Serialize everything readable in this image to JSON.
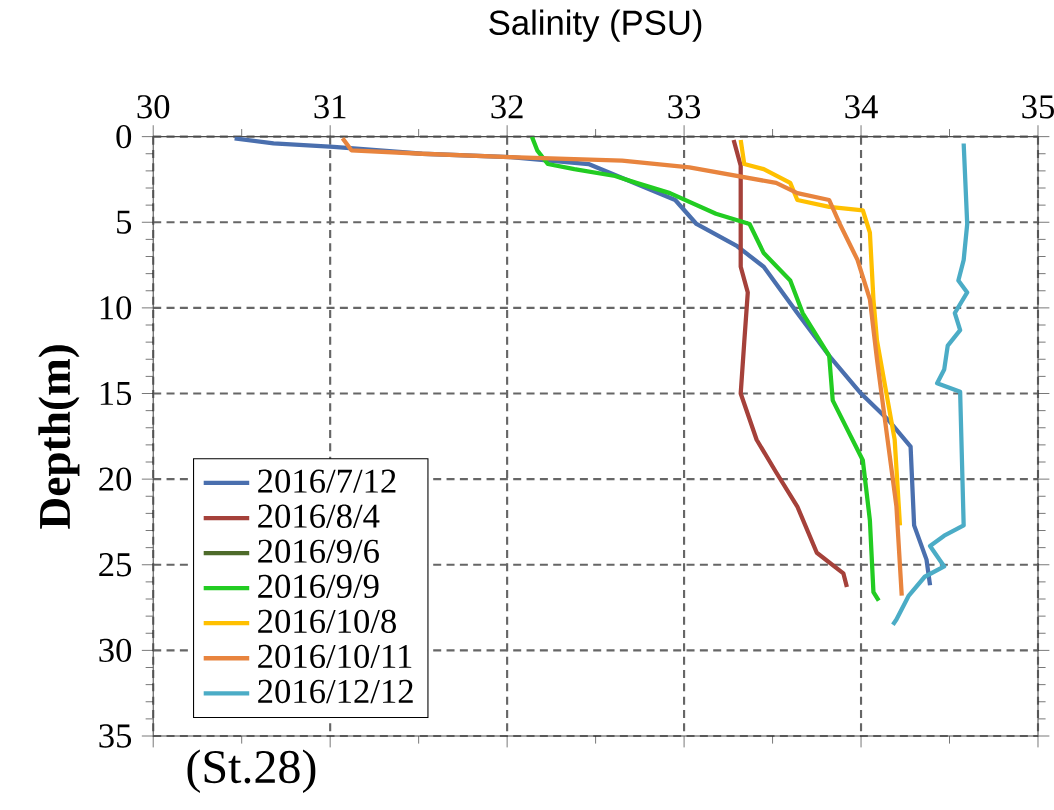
{
  "chart_data": {
    "type": "line",
    "title": "Salinity (PSU)",
    "ylabel": "Depth(m)",
    "xlim": [
      30,
      35
    ],
    "xticks": [
      30,
      31,
      32,
      33,
      34,
      35
    ],
    "ylim": [
      35,
      0
    ],
    "yticks": [
      0,
      5,
      10,
      15,
      20,
      25,
      30,
      35
    ],
    "grid": true,
    "legend": "bottom left",
    "marker": "none",
    "line_style": "solid",
    "annotations": [
      "(St.28)"
    ],
    "series": [
      {
        "name": "2016/7/12",
        "color": "#4a6fae",
        "x": [
          30.46,
          30.68,
          31.02,
          31.52,
          32.02,
          32.46,
          32.95,
          33.07,
          33.3,
          33.45,
          33.64,
          33.82,
          34.0,
          34.15,
          34.28,
          34.3,
          34.37,
          34.39
        ],
        "values": [
          0.1,
          0.4,
          0.6,
          1.0,
          1.2,
          1.6,
          3.7,
          5.1,
          6.4,
          7.6,
          10.3,
          12.8,
          15.0,
          16.5,
          18.1,
          22.7,
          24.7,
          26.2
        ]
      },
      {
        "name": "2016/8/4",
        "color": "#a5413a",
        "x": [
          33.28,
          33.32,
          33.32,
          33.36,
          33.34,
          33.32,
          33.41,
          33.52,
          33.64,
          33.75,
          33.9,
          33.92
        ],
        "values": [
          0.2,
          1.7,
          7.6,
          9.1,
          12.0,
          15.0,
          17.7,
          19.6,
          21.6,
          24.3,
          25.5,
          26.3
        ]
      },
      {
        "name": "2016/9/6",
        "color": "#4e6b2a"
      },
      {
        "name": "2016/9/9",
        "color": "#22cc22",
        "x": [
          32.14,
          32.17,
          32.23,
          32.38,
          32.61,
          32.73,
          32.92,
          33.18,
          33.37,
          33.45,
          33.6,
          33.67,
          33.82,
          33.84,
          34.01,
          34.05,
          34.07,
          34.1
        ],
        "values": [
          0.0,
          0.8,
          1.6,
          1.9,
          2.3,
          2.7,
          3.3,
          4.5,
          5.1,
          6.8,
          8.4,
          10.3,
          12.8,
          15.4,
          18.9,
          22.4,
          26.6,
          27.1
        ]
      },
      {
        "name": "2016/10/8",
        "color": "#ffc000",
        "x": [
          33.32,
          33.34,
          33.45,
          33.6,
          33.64,
          33.82,
          34.01,
          34.05,
          34.07,
          34.09,
          34.19,
          34.22
        ],
        "values": [
          0.2,
          1.6,
          1.9,
          2.7,
          3.7,
          4.1,
          4.3,
          5.6,
          9.5,
          11.9,
          17.7,
          22.7
        ]
      },
      {
        "name": "2016/10/11",
        "color": "#e8843e",
        "x": [
          31.07,
          31.12,
          31.52,
          32.02,
          32.65,
          33.03,
          33.52,
          33.64,
          33.82,
          33.88,
          33.98,
          34.05,
          34.09,
          34.15,
          34.2,
          34.23
        ],
        "values": [
          0.1,
          0.8,
          1.0,
          1.2,
          1.4,
          1.8,
          2.7,
          3.3,
          3.7,
          5.1,
          7.2,
          9.5,
          13.0,
          17.7,
          21.6,
          26.8
        ]
      },
      {
        "name": "2016/12/12",
        "color": "#4bacc6",
        "x": [
          34.58,
          34.6,
          34.58,
          34.55,
          34.6,
          34.53,
          34.56,
          34.49,
          34.47,
          34.43,
          34.56,
          34.58,
          34.47,
          34.39,
          34.47,
          34.36,
          34.27,
          34.2,
          34.18
        ],
        "values": [
          0.4,
          5.1,
          7.2,
          8.4,
          9.1,
          10.3,
          11.3,
          12.2,
          13.6,
          14.4,
          14.9,
          22.7,
          23.3,
          23.9,
          25.1,
          25.7,
          26.8,
          28.2,
          28.5
        ]
      }
    ]
  }
}
